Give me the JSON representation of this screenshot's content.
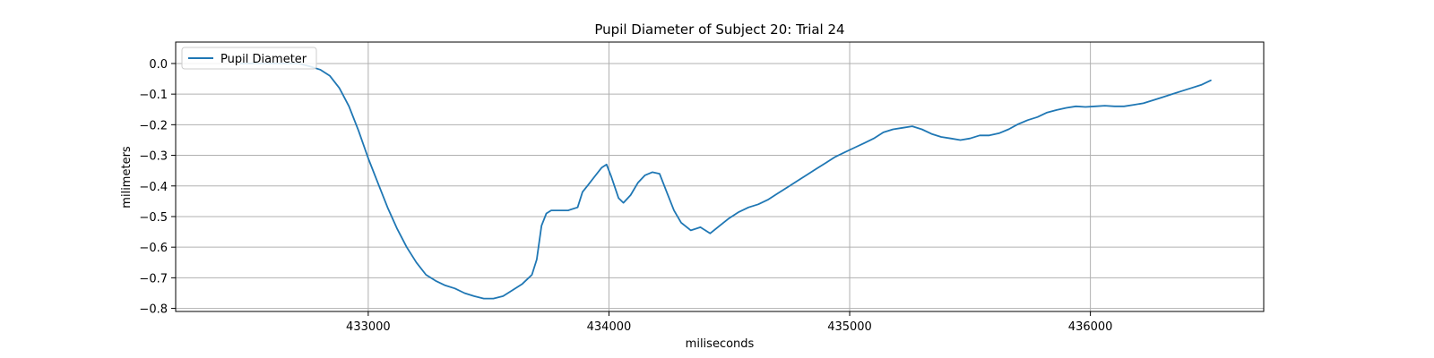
{
  "chart_data": {
    "type": "line",
    "title": "Pupil Diameter of Subject 20: Trial 24",
    "xlabel": "miliseconds",
    "ylabel": "milimeters",
    "xlim": [
      432200,
      436720
    ],
    "ylim": [
      -0.81,
      0.07
    ],
    "xticks": [
      433000,
      434000,
      435000,
      436000
    ],
    "xtick_labels": [
      "433000",
      "434000",
      "435000",
      "436000"
    ],
    "yticks": [
      0.0,
      -0.1,
      -0.2,
      -0.3,
      -0.4,
      -0.5,
      -0.6,
      -0.7,
      -0.8
    ],
    "ytick_labels": [
      "0.0",
      "−0.1",
      "−0.2",
      "−0.3",
      "−0.4",
      "−0.5",
      "−0.6",
      "−0.7",
      "−0.8"
    ],
    "grid": true,
    "legend": {
      "placement": "upper-left",
      "entries": [
        "Pupil Diameter"
      ]
    },
    "series": [
      {
        "name": "Pupil Diameter",
        "color": "#1f77b4",
        "x": [
          432470,
          432530,
          432590,
          432650,
          432710,
          432760,
          432800,
          432840,
          432880,
          432920,
          432960,
          433000,
          433040,
          433080,
          433120,
          433160,
          433200,
          433240,
          433280,
          433320,
          433360,
          433400,
          433440,
          433480,
          433520,
          433560,
          433600,
          433640,
          433680,
          433700,
          433720,
          433740,
          433760,
          433780,
          433800,
          433830,
          433870,
          433890,
          433910,
          433940,
          433970,
          433990,
          434010,
          434040,
          434060,
          434090,
          434120,
          434150,
          434180,
          434210,
          434240,
          434270,
          434300,
          434340,
          434380,
          434420,
          434460,
          434500,
          434540,
          434580,
          434620,
          434660,
          434700,
          434740,
          434780,
          434820,
          434860,
          434900,
          434940,
          434980,
          435020,
          435060,
          435100,
          435140,
          435180,
          435220,
          435260,
          435300,
          435340,
          435380,
          435420,
          435460,
          435500,
          435540,
          435580,
          435620,
          435660,
          435700,
          435740,
          435780,
          435820,
          435860,
          435900,
          435940,
          435980,
          436020,
          436060,
          436100,
          436140,
          436180,
          436220,
          436260,
          436300,
          436340,
          436380,
          436420,
          436460,
          436500
        ],
        "y": [
          0.0,
          0.0,
          0.0,
          0.0,
          0.0,
          -0.01,
          -0.02,
          -0.04,
          -0.08,
          -0.14,
          -0.22,
          -0.31,
          -0.39,
          -0.47,
          -0.54,
          -0.6,
          -0.65,
          -0.69,
          -0.71,
          -0.725,
          -0.735,
          -0.75,
          -0.76,
          -0.768,
          -0.768,
          -0.76,
          -0.74,
          -0.72,
          -0.69,
          -0.64,
          -0.53,
          -0.49,
          -0.48,
          -0.48,
          -0.48,
          -0.48,
          -0.47,
          -0.42,
          -0.4,
          -0.37,
          -0.34,
          -0.33,
          -0.37,
          -0.44,
          -0.455,
          -0.43,
          -0.39,
          -0.365,
          -0.355,
          -0.36,
          -0.42,
          -0.48,
          -0.52,
          -0.545,
          -0.535,
          -0.555,
          -0.53,
          -0.505,
          -0.485,
          -0.47,
          -0.46,
          -0.445,
          -0.425,
          -0.405,
          -0.385,
          -0.365,
          -0.345,
          -0.325,
          -0.305,
          -0.29,
          -0.275,
          -0.26,
          -0.245,
          -0.225,
          -0.215,
          -0.21,
          -0.205,
          -0.215,
          -0.23,
          -0.24,
          -0.245,
          -0.25,
          -0.245,
          -0.235,
          -0.235,
          -0.228,
          -0.215,
          -0.198,
          -0.185,
          -0.175,
          -0.16,
          -0.152,
          -0.145,
          -0.14,
          -0.142,
          -0.14,
          -0.138,
          -0.14,
          -0.14,
          -0.135,
          -0.13,
          -0.12,
          -0.11,
          -0.1,
          -0.09,
          -0.08,
          -0.07,
          -0.055
        ]
      }
    ]
  }
}
